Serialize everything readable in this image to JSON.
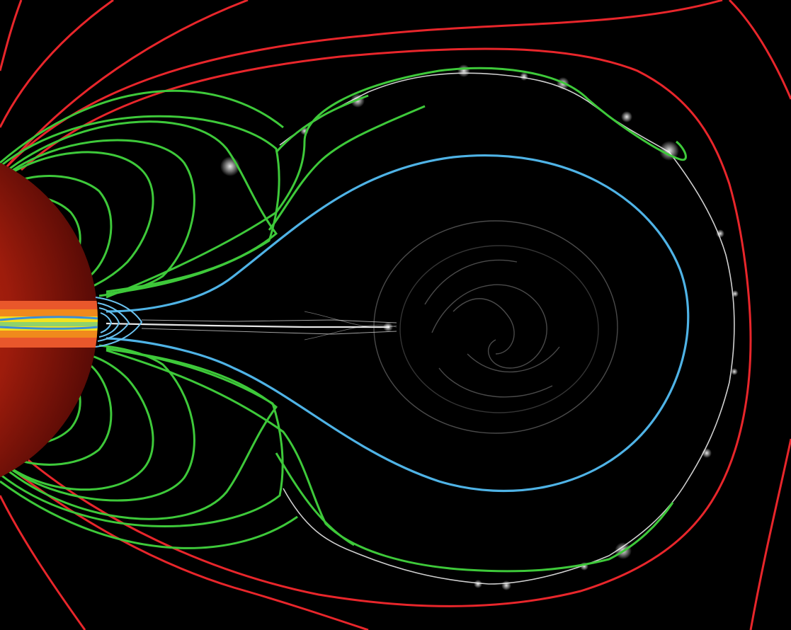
{
  "image": {
    "description_free": true,
    "colors": {
      "background": "#000000",
      "open_field_lines": "#e8262b",
      "closed_field_lines": "#3ec93a",
      "inner_loop": "#4fb3e6",
      "current_sheet": "#d9d9d9",
      "star_core": "#b01e0e",
      "star_edge": "#5a0a05",
      "equator_band_orange": "#f08a1c",
      "equator_band_yellow": "#f4e21e",
      "equator_band_blue": "#3a8fd6"
    },
    "icons": [
      "star-disk",
      "field-line",
      "plasmoid-blob"
    ]
  }
}
